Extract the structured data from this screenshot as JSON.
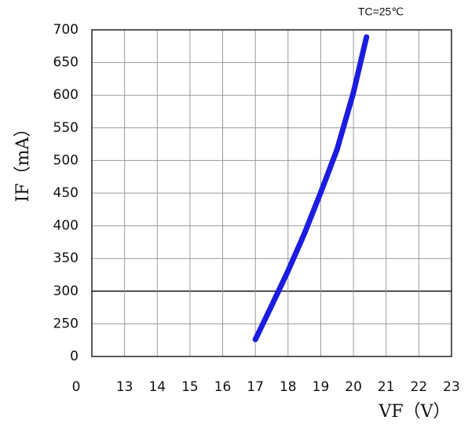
{
  "chart_data": {
    "type": "line",
    "title": "TC=25℃",
    "x_label": "VF（V）",
    "y_label": "IF（mA）",
    "x": [
      17,
      17.5,
      18,
      18.5,
      19,
      19.5,
      20,
      20.4
    ],
    "series": [
      {
        "color": "#1c1ce0",
        "values": [
          226,
          278,
          331,
          388,
          451,
          517,
          604,
          689
        ]
      }
    ],
    "xlim": [
      12,
      23
    ],
    "xticks": [
      {
        "value": 12,
        "label": "0"
      },
      13,
      14,
      15,
      16,
      17,
      18,
      19,
      20,
      21,
      22,
      23
    ],
    "ylim": [
      200,
      700
    ],
    "yticks": [
      {
        "value": 200,
        "label": "0"
      },
      250,
      300,
      350,
      400,
      450,
      500,
      550,
      600,
      650,
      700
    ],
    "reference_line": 300,
    "grid": true
  }
}
